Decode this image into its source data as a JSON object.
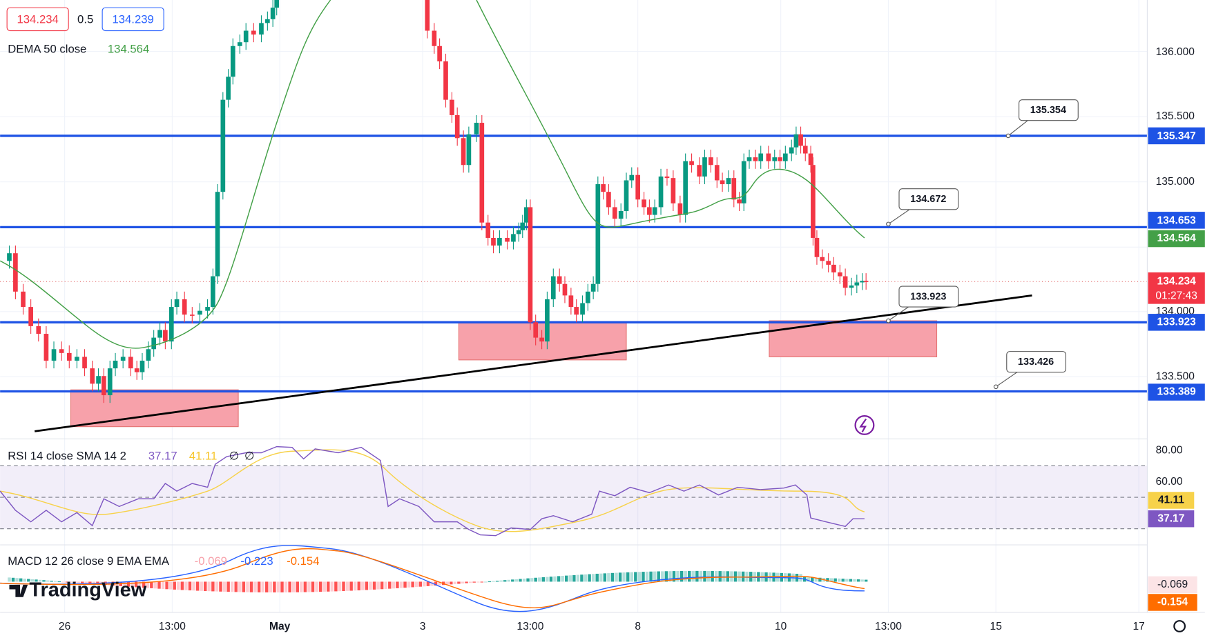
{
  "legend": {
    "bid": "134.234",
    "spread": "0.5",
    "ask": "134.239",
    "dema_label": "DEMA 50 close",
    "dema_value": "134.564"
  },
  "price_axis": {
    "ticks": [
      "136.000",
      "135.500",
      "135.000",
      "134.000",
      "133.500"
    ],
    "labels": {
      "level_1": "135.347",
      "level_2": "134.653",
      "dema": "134.564",
      "last": "134.234",
      "countdown": "01:27:43",
      "level_3": "133.923",
      "level_4": "133.389"
    }
  },
  "callouts": [
    "135.354",
    "134.672",
    "133.923",
    "133.426"
  ],
  "rsi": {
    "title": "RSI 14 close SMA 14 2",
    "value": "37.17",
    "sma": "41.11",
    "extra_1": "∅",
    "extra_2": "∅",
    "ticks": [
      "80.00",
      "60.00"
    ],
    "label_sma": "41.11",
    "label_value": "37.17"
  },
  "macd": {
    "title": "MACD 12 26 close 9 EMA EMA",
    "hist": "-0.069",
    "macd": "-0.223",
    "signal": "-0.154",
    "label_hist": "-0.069",
    "label_signal": "-0.154"
  },
  "time_axis": [
    "26",
    "13:00",
    "May",
    "3",
    "13:00",
    "8",
    "10",
    "13:00",
    "15",
    "17"
  ],
  "logo": "TradingView"
}
